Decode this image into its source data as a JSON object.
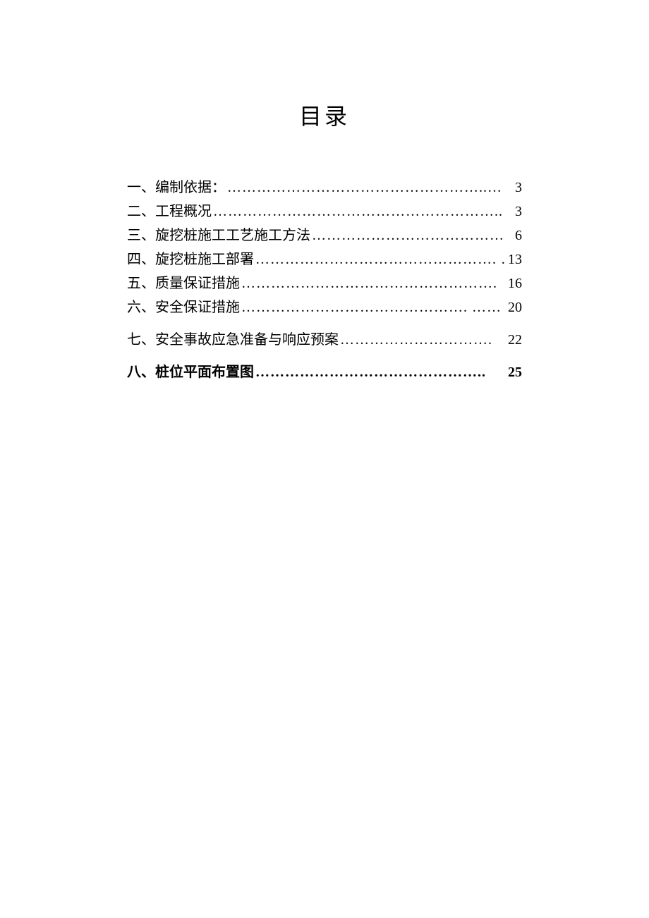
{
  "title": "目录",
  "entries": [
    {
      "label": "一、编制依据：",
      "dots": "……………………………………………..…",
      "page": "3",
      "bold": false,
      "extraSpace": false
    },
    {
      "label": "二、工程概况",
      "dots": "…………………………………………………..",
      "page": "3",
      "bold": false,
      "extraSpace": false
    },
    {
      "label": "三、旋挖桩施工工艺施工方法",
      "dots": "…………………………………",
      "page": "6",
      "bold": false,
      "extraSpace": false
    },
    {
      "label": "四、旋挖桩施工部署",
      "dots": "…………………………………………. …",
      "page": "13",
      "bold": false,
      "extraSpace": false
    },
    {
      "label": "五、质量保证措施",
      "dots": "…………………………………………….",
      "page": "16",
      "bold": false,
      "extraSpace": false
    },
    {
      "label": "六、安全保证措施",
      "dots": "………………………………………. ……",
      "page": "20",
      "bold": false,
      "extraSpace": false
    },
    {
      "label": "七、安全事故应急准备与响应预案",
      "dots": "………………………….",
      "page": "22",
      "bold": false,
      "extraSpace": true
    },
    {
      "label": "八、桩位平面布置图",
      "dots": "………………………………………..",
      "page": "25",
      "bold": true,
      "extraSpace": true
    }
  ]
}
